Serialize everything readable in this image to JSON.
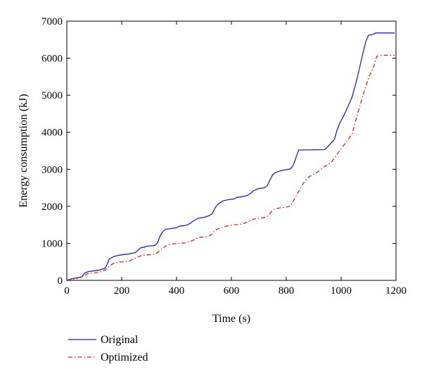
{
  "chart_data": {
    "type": "line",
    "xlabel": "Time (s)",
    "ylabel": "Energy consumption (kJ)",
    "xlim": [
      0,
      1200
    ],
    "ylim": [
      0,
      7000
    ],
    "xticks": [
      0,
      200,
      400,
      600,
      800,
      1000,
      1200
    ],
    "yticks": [
      0,
      1000,
      2000,
      3000,
      4000,
      5000,
      6000,
      7000
    ],
    "grid": false,
    "legend_position": "bottom-left, below plot",
    "series": [
      {
        "name": "Original",
        "color": "#1f1fd6",
        "line_style": "solid",
        "points": [
          [
            0,
            0
          ],
          [
            10,
            20
          ],
          [
            20,
            50
          ],
          [
            40,
            70
          ],
          [
            55,
            100
          ],
          [
            65,
            200
          ],
          [
            80,
            240
          ],
          [
            100,
            260
          ],
          [
            120,
            280
          ],
          [
            140,
            330
          ],
          [
            148,
            450
          ],
          [
            155,
            580
          ],
          [
            170,
            640
          ],
          [
            190,
            680
          ],
          [
            210,
            700
          ],
          [
            225,
            710
          ],
          [
            235,
            730
          ],
          [
            250,
            750
          ],
          [
            260,
            820
          ],
          [
            270,
            880
          ],
          [
            285,
            900
          ],
          [
            290,
            920
          ],
          [
            300,
            930
          ],
          [
            320,
            940
          ],
          [
            330,
            1000
          ],
          [
            340,
            1200
          ],
          [
            350,
            1320
          ],
          [
            360,
            1380
          ],
          [
            380,
            1400
          ],
          [
            400,
            1420
          ],
          [
            410,
            1460
          ],
          [
            430,
            1480
          ],
          [
            440,
            1500
          ],
          [
            450,
            1540
          ],
          [
            460,
            1600
          ],
          [
            470,
            1640
          ],
          [
            480,
            1680
          ],
          [
            500,
            1700
          ],
          [
            520,
            1750
          ],
          [
            530,
            1800
          ],
          [
            540,
            1950
          ],
          [
            550,
            2050
          ],
          [
            560,
            2100
          ],
          [
            570,
            2150
          ],
          [
            590,
            2180
          ],
          [
            610,
            2200
          ],
          [
            620,
            2240
          ],
          [
            640,
            2260
          ],
          [
            660,
            2300
          ],
          [
            670,
            2350
          ],
          [
            680,
            2420
          ],
          [
            700,
            2480
          ],
          [
            720,
            2500
          ],
          [
            730,
            2550
          ],
          [
            740,
            2700
          ],
          [
            750,
            2850
          ],
          [
            760,
            2910
          ],
          [
            780,
            2960
          ],
          [
            800,
            2990
          ],
          [
            815,
            3010
          ],
          [
            825,
            3100
          ],
          [
            835,
            3300
          ],
          [
            845,
            3520
          ],
          [
            870,
            3520
          ],
          [
            940,
            3530
          ],
          [
            950,
            3600
          ],
          [
            960,
            3680
          ],
          [
            975,
            3800
          ],
          [
            985,
            4050
          ],
          [
            995,
            4250
          ],
          [
            1010,
            4450
          ],
          [
            1025,
            4700
          ],
          [
            1040,
            4950
          ],
          [
            1060,
            5500
          ],
          [
            1075,
            6000
          ],
          [
            1090,
            6450
          ],
          [
            1100,
            6620
          ],
          [
            1115,
            6640
          ],
          [
            1125,
            6680
          ],
          [
            1195,
            6680
          ]
        ]
      },
      {
        "name": "Optimized",
        "color": "#e0201e",
        "line_style": "dash-dot",
        "points": [
          [
            0,
            0
          ],
          [
            20,
            20
          ],
          [
            40,
            60
          ],
          [
            60,
            110
          ],
          [
            75,
            180
          ],
          [
            100,
            200
          ],
          [
            120,
            220
          ],
          [
            140,
            280
          ],
          [
            155,
            380
          ],
          [
            170,
            460
          ],
          [
            190,
            490
          ],
          [
            210,
            500
          ],
          [
            230,
            530
          ],
          [
            250,
            600
          ],
          [
            265,
            650
          ],
          [
            280,
            680
          ],
          [
            300,
            690
          ],
          [
            320,
            700
          ],
          [
            340,
            800
          ],
          [
            355,
            900
          ],
          [
            370,
            960
          ],
          [
            390,
            990
          ],
          [
            410,
            1000
          ],
          [
            430,
            1010
          ],
          [
            450,
            1050
          ],
          [
            465,
            1100
          ],
          [
            480,
            1160
          ],
          [
            500,
            1170
          ],
          [
            520,
            1200
          ],
          [
            530,
            1250
          ],
          [
            540,
            1350
          ],
          [
            555,
            1400
          ],
          [
            570,
            1440
          ],
          [
            590,
            1480
          ],
          [
            610,
            1500
          ],
          [
            630,
            1510
          ],
          [
            650,
            1550
          ],
          [
            665,
            1600
          ],
          [
            680,
            1650
          ],
          [
            700,
            1680
          ],
          [
            715,
            1690
          ],
          [
            730,
            1720
          ],
          [
            740,
            1800
          ],
          [
            750,
            1900
          ],
          [
            760,
            1930
          ],
          [
            780,
            1960
          ],
          [
            800,
            1980
          ],
          [
            815,
            2000
          ],
          [
            830,
            2200
          ],
          [
            845,
            2400
          ],
          [
            860,
            2600
          ],
          [
            875,
            2750
          ],
          [
            890,
            2830
          ],
          [
            910,
            2900
          ],
          [
            925,
            2990
          ],
          [
            945,
            3100
          ],
          [
            965,
            3200
          ],
          [
            980,
            3350
          ],
          [
            1000,
            3550
          ],
          [
            1020,
            3750
          ],
          [
            1040,
            3950
          ],
          [
            1060,
            4500
          ],
          [
            1080,
            5000
          ],
          [
            1095,
            5350
          ],
          [
            1105,
            5550
          ],
          [
            1120,
            5800
          ],
          [
            1130,
            6050
          ],
          [
            1150,
            6080
          ],
          [
            1195,
            6080
          ]
        ]
      }
    ]
  }
}
